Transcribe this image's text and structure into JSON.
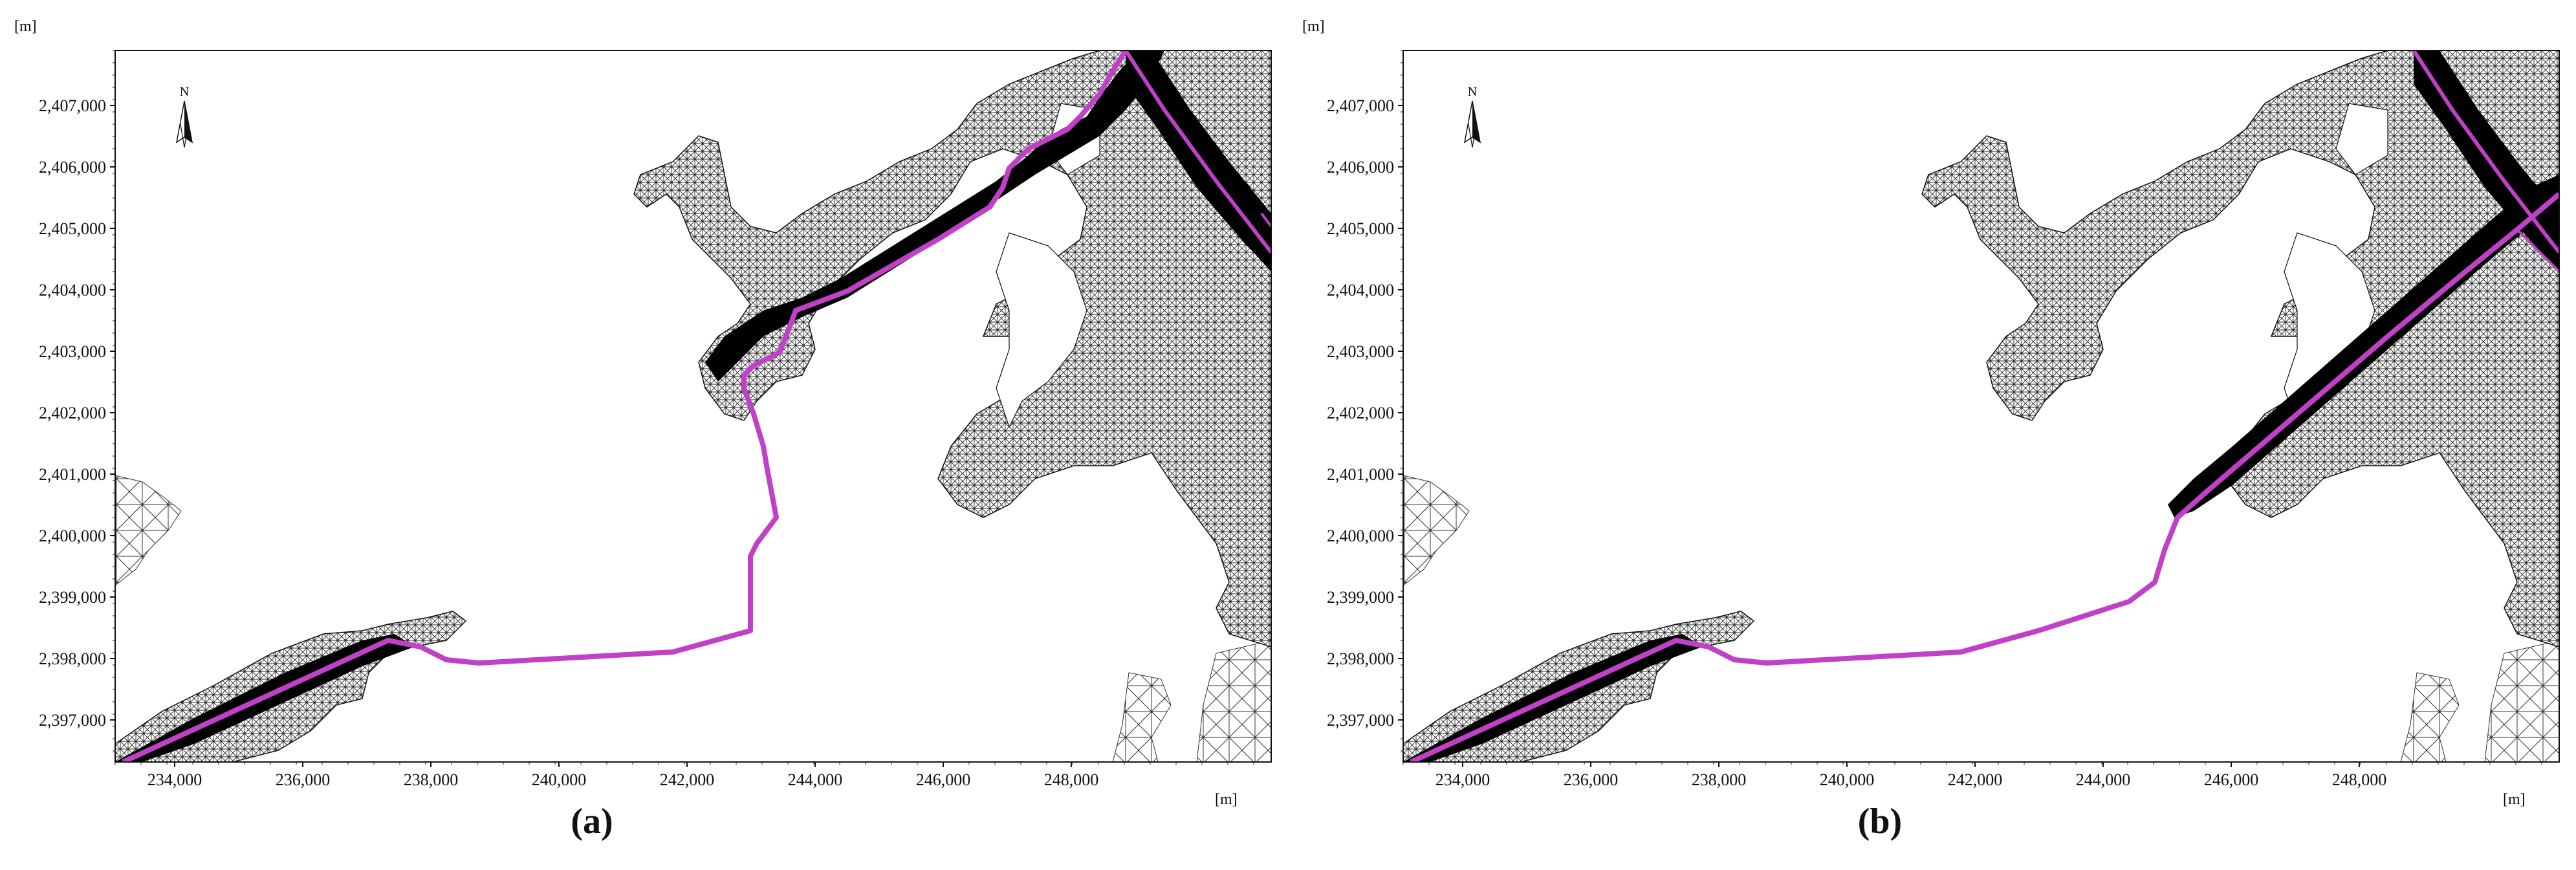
{
  "panels": [
    {
      "id": "a",
      "caption": "(a)",
      "unit_top": "[m]",
      "unit_right": "[m]",
      "north_label": "N",
      "route_color": "#c040c8"
    },
    {
      "id": "b",
      "caption": "(b)",
      "unit_top": "[m]",
      "unit_right": "[m]",
      "north_label": "N",
      "route_color": "#c040c8"
    }
  ],
  "axes": {
    "x_ticks": [
      "234,000",
      "236,000",
      "238,000",
      "240,000",
      "242,000",
      "244,000",
      "246,000",
      "248,000"
    ],
    "y_ticks": [
      "2,407,000",
      "2,406,000",
      "2,405,000",
      "2,404,000",
      "2,403,000",
      "2,402,000",
      "2,401,000",
      "2,400,000",
      "2,399,000",
      "2,398,000",
      "2,397,000"
    ]
  }
}
